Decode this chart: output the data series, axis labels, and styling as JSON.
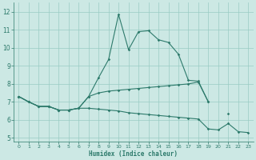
{
  "xlabel": "Humidex (Indice chaleur)",
  "bg_color": "#cce8e4",
  "grid_color": "#99ccc4",
  "line_color": "#2d7a6b",
  "xlim": [
    -0.5,
    23.5
  ],
  "ylim": [
    4.8,
    12.5
  ],
  "yticks": [
    5,
    6,
    7,
    8,
    9,
    10,
    11,
    12
  ],
  "xticks": [
    0,
    1,
    2,
    3,
    4,
    5,
    6,
    7,
    8,
    9,
    10,
    11,
    12,
    13,
    14,
    15,
    16,
    17,
    18,
    19,
    20,
    21,
    22,
    23
  ],
  "line1_y": [
    7.3,
    7.0,
    6.75,
    6.75,
    6.55,
    6.55,
    6.65,
    7.3,
    8.35,
    9.35,
    11.85,
    9.9,
    10.9,
    10.95,
    10.45,
    10.3,
    9.65,
    8.2,
    8.15,
    7.0,
    null,
    6.35,
    null,
    null
  ],
  "line2_y": [
    7.3,
    7.0,
    6.75,
    6.75,
    6.55,
    6.55,
    6.65,
    7.3,
    7.5,
    7.6,
    7.65,
    7.7,
    7.75,
    7.8,
    7.85,
    7.9,
    7.95,
    8.0,
    8.1,
    7.0,
    null,
    null,
    null,
    null
  ],
  "line3_y": [
    7.3,
    7.0,
    6.75,
    6.75,
    6.55,
    6.55,
    6.65,
    6.65,
    6.6,
    6.55,
    6.5,
    6.4,
    6.35,
    6.3,
    6.25,
    6.2,
    6.15,
    6.1,
    6.05,
    5.5,
    5.45,
    5.8,
    5.35,
    5.3
  ]
}
